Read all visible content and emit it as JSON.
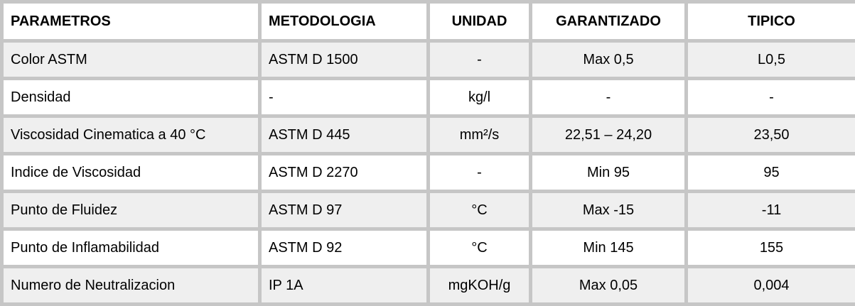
{
  "colors": {
    "border": "#c6c6c6",
    "row_shaded": "#efefef",
    "row_plain": "#ffffff",
    "header_bg": "#ffffff",
    "text": "#000000"
  },
  "table": {
    "columns": [
      "PARAMETROS",
      "METODOLOGIA",
      "UNIDAD",
      "GARANTIZADO",
      "TIPICO"
    ],
    "rows": [
      [
        "Color ASTM",
        "ASTM D 1500",
        "-",
        "Max 0,5",
        "L0,5"
      ],
      [
        "Densidad",
        "-",
        "kg/l",
        "-",
        "-"
      ],
      [
        "Viscosidad Cinematica a 40 °C",
        "ASTM D 445",
        "mm²/s",
        "22,51 – 24,20",
        "23,50"
      ],
      [
        "Indice de Viscosidad",
        "ASTM D 2270",
        "-",
        "Min 95",
        "95"
      ],
      [
        "Punto de Fluidez",
        "ASTM D 97",
        "°C",
        "Max -15",
        "-11"
      ],
      [
        "Punto de Inflamabilidad",
        "ASTM D 92",
        "°C",
        "Min 145",
        "155"
      ],
      [
        "Numero de Neutralizacion",
        "IP 1A",
        "mgKOH/g",
        "Max 0,05",
        "0,004"
      ]
    ]
  }
}
